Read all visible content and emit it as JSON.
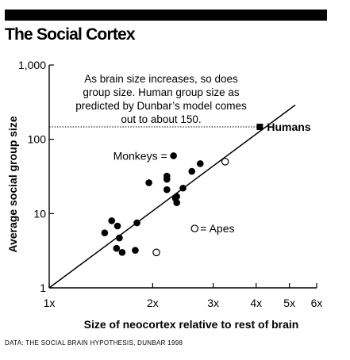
{
  "header": {
    "title": "The Social Cortex"
  },
  "footer": {
    "source": "DATA: THE SOCIAL BRAIN HYPOTHESIS, DUNBAR 1998"
  },
  "chart_data": {
    "type": "scatter",
    "title": "The Social Cortex",
    "xlabel": "Size of neocortex relative to rest of brain",
    "ylabel": "Average social group size",
    "x_scale": "log",
    "y_scale": "log",
    "xlim": [
      1,
      6
    ],
    "ylim": [
      1,
      1000
    ],
    "x_ticks": [
      {
        "value": 1,
        "label": "1x"
      },
      {
        "value": 2,
        "label": "2x"
      },
      {
        "value": 3,
        "label": "3x"
      },
      {
        "value": 4,
        "label": "4x"
      },
      {
        "value": 5,
        "label": "5x"
      },
      {
        "value": 6,
        "label": "6x"
      }
    ],
    "y_ticks": [
      {
        "value": 1,
        "label": "1"
      },
      {
        "value": 10,
        "label": "10"
      },
      {
        "value": 100,
        "label": "100"
      },
      {
        "value": 1000,
        "label": "1,000"
      }
    ],
    "grid": false,
    "annotation": {
      "lines": [
        "As brain size increases, so does",
        "group size. Human group size as",
        "predicted by Dunbar’s model comes",
        "out to about 150."
      ]
    },
    "regression_line": {
      "x": [
        1,
        5.2
      ],
      "y": [
        1,
        290
      ]
    },
    "series": [
      {
        "name": "Monkeys",
        "label": "Monkeys =",
        "marker": "filled-circle",
        "points": [
          {
            "x": 1.45,
            "y": 5.5
          },
          {
            "x": 1.52,
            "y": 8.0
          },
          {
            "x": 1.58,
            "y": 6.8
          },
          {
            "x": 1.6,
            "y": 4.7
          },
          {
            "x": 1.57,
            "y": 3.4
          },
          {
            "x": 1.63,
            "y": 3.0
          },
          {
            "x": 1.78,
            "y": 3.2
          },
          {
            "x": 1.8,
            "y": 7.5
          },
          {
            "x": 1.95,
            "y": 26
          },
          {
            "x": 2.2,
            "y": 32
          },
          {
            "x": 2.2,
            "y": 29
          },
          {
            "x": 2.2,
            "y": 21
          },
          {
            "x": 2.33,
            "y": 16
          },
          {
            "x": 2.35,
            "y": 14
          },
          {
            "x": 2.35,
            "y": 17
          },
          {
            "x": 2.45,
            "y": 22
          },
          {
            "x": 2.6,
            "y": 37
          },
          {
            "x": 2.75,
            "y": 47
          },
          {
            "x": 2.3,
            "y": 60
          }
        ]
      },
      {
        "name": "Apes",
        "label": "= Apes",
        "marker": "open-circle",
        "points": [
          {
            "x": 2.05,
            "y": 3.0
          },
          {
            "x": 3.25,
            "y": 50
          },
          {
            "x": 2.65,
            "y": 6.3
          }
        ]
      },
      {
        "name": "Humans",
        "label": "Humans",
        "marker": "filled-square",
        "points": [
          {
            "x": 4.1,
            "y": 147
          }
        ]
      }
    ]
  }
}
